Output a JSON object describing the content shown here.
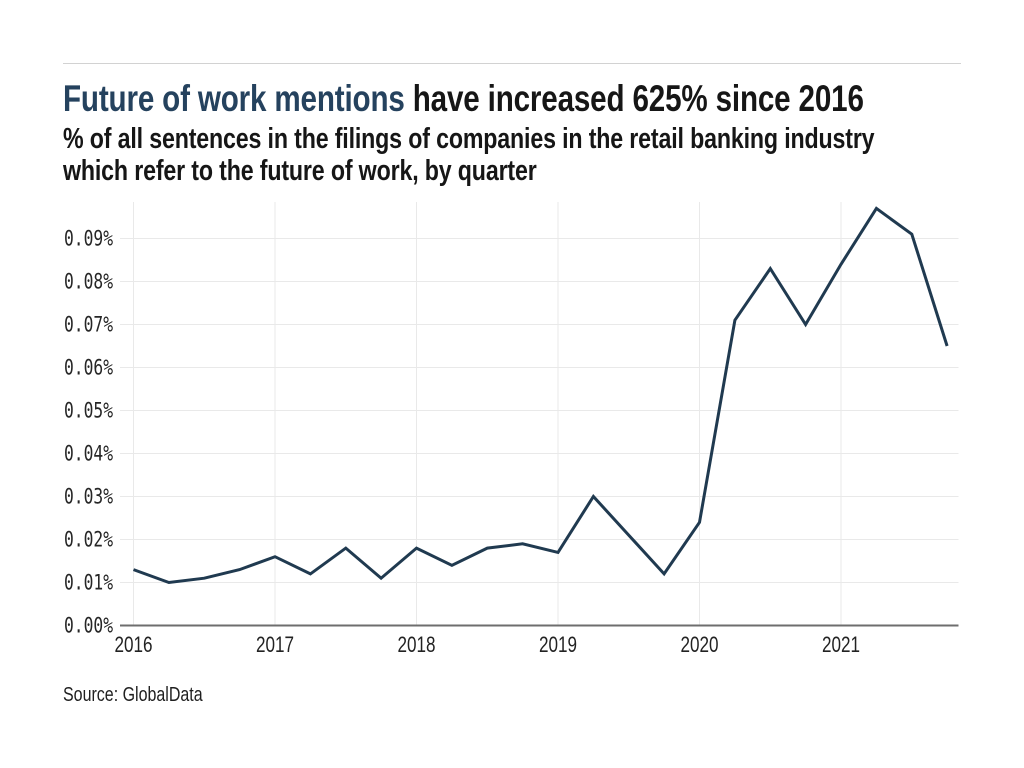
{
  "page": {
    "title_highlight": "Future of work mentions",
    "title_rest": " have increased 625% since 2016",
    "subtitle_line1": "% of all sentences in the filings of companies in the retail banking industry",
    "subtitle_line2": "which refer to the future of work, by quarter",
    "source": "Source: GlobalData"
  },
  "colors": {
    "title_highlight": "#25425e",
    "title_rest": "#161616",
    "line": "#203a50",
    "grid": "#e9e9e9",
    "axis": "#6e6e6e",
    "ytick_text": "#262626",
    "xtick_text": "#222222",
    "rule": "#d2d2d2"
  },
  "chart_data": {
    "type": "line",
    "title": "Future of work mentions have increased 625% since 2016",
    "subtitle": "% of all sentences in the filings of companies in the retail banking industry which refer to the future of work, by quarter",
    "source": "GlobalData",
    "categories": [
      "2016 Q1",
      "2016 Q2",
      "2016 Q3",
      "2016 Q4",
      "2017 Q1",
      "2017 Q2",
      "2017 Q3",
      "2017 Q4",
      "2018 Q1",
      "2018 Q2",
      "2018 Q3",
      "2018 Q4",
      "2019 Q1",
      "2019 Q2",
      "2019 Q3",
      "2019 Q4",
      "2020 Q1",
      "2020 Q2",
      "2020 Q3",
      "2020 Q4",
      "2021 Q1",
      "2021 Q2",
      "2021 Q3",
      "2021 Q4"
    ],
    "values": [
      0.013,
      0.01,
      0.011,
      0.013,
      0.016,
      0.012,
      0.018,
      0.011,
      0.018,
      0.014,
      0.018,
      0.019,
      0.017,
      0.03,
      0.021,
      0.012,
      0.024,
      0.071,
      0.083,
      0.07,
      0.084,
      0.097,
      0.091,
      0.065
    ],
    "series_name": "% of sentences referring to the future of work",
    "ylim": [
      0,
      0.098
    ],
    "ytick_values": [
      0,
      0.01,
      0.02,
      0.03,
      0.04,
      0.05,
      0.06,
      0.07,
      0.08,
      0.09
    ],
    "yticks": [
      "0.00%",
      "0.01%",
      "0.02%",
      "0.03%",
      "0.04%",
      "0.05%",
      "0.06%",
      "0.07%",
      "0.08%",
      "0.09%"
    ],
    "xtick_values": [
      2016,
      2017,
      2018,
      2019,
      2020,
      2021
    ],
    "xticks": [
      "2016",
      "2017",
      "2018",
      "2019",
      "2020",
      "2021"
    ],
    "grid": true,
    "legend_position": "none"
  }
}
